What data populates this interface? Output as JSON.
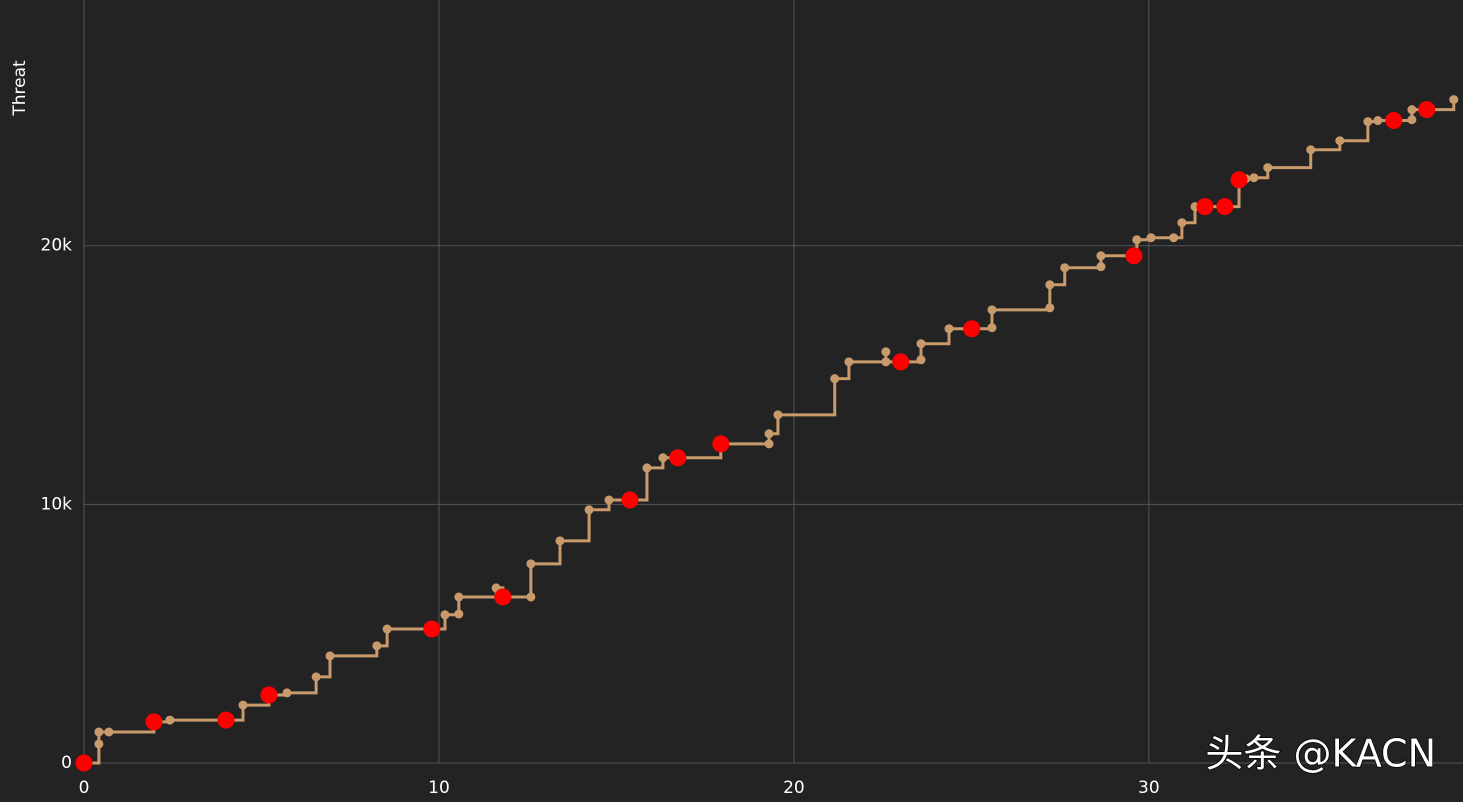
{
  "chart_data": {
    "type": "line",
    "y_label": "Threat",
    "watermark": "头条 @KACN",
    "xlim": [
      0,
      38.85
    ],
    "ylim": [
      0,
      29500
    ],
    "xticks": [
      0,
      10,
      20,
      30
    ],
    "yticks": [
      0,
      {
        "value": 10000,
        "label": "10k"
      },
      {
        "value": 20000,
        "label": "20k"
      }
    ],
    "grid": true,
    "series": [
      {
        "color": "#c89a6c",
        "line_shape": "hv",
        "mode": "lines+markers",
        "x": [
          0,
          0.42,
          0.42,
          0.7,
          1.97,
          2.42,
          4.0,
          4.48,
          5.21,
          5.72,
          6.54,
          6.93,
          8.25,
          8.54,
          9.8,
          10.17,
          10.56,
          10.56,
          11.61,
          11.8,
          12.59,
          12.59,
          13.41,
          14.23,
          14.79,
          15.38,
          15.86,
          16.31,
          16.73,
          17.94,
          19.3,
          19.3,
          19.55,
          21.15,
          21.55,
          22.59,
          22.59,
          23.01,
          23.58,
          23.58,
          24.37,
          25.01,
          25.58,
          25.58,
          27.21,
          27.21,
          27.63,
          28.65,
          28.65,
          29.58,
          29.66,
          30.06,
          30.7,
          30.93,
          31.3,
          31.58,
          32.14,
          32.54,
          32.73,
          32.96,
          33.35,
          34.56,
          35.38,
          36.17,
          36.45,
          36.9,
          37.41,
          37.41,
          37.83,
          38.59
        ],
        "values": [
          0,
          735,
          1200,
          1200,
          1590,
          1660,
          1660,
          2240,
          2630,
          2710,
          3330,
          4140,
          4530,
          5180,
          5180,
          5730,
          5760,
          6420,
          6770,
          6420,
          6420,
          7700,
          8590,
          9790,
          10170,
          10170,
          11410,
          11800,
          11800,
          12340,
          12340,
          12730,
          13460,
          14860,
          15510,
          15900,
          15510,
          15510,
          15590,
          16210,
          16790,
          16790,
          16830,
          17520,
          17600,
          18490,
          19150,
          19190,
          19610,
          19610,
          20230,
          20310,
          20310,
          20890,
          21510,
          21510,
          21510,
          22550,
          22590,
          22630,
          23020,
          23710,
          24060,
          24800,
          24840,
          24840,
          24870,
          25260,
          25260,
          25650
        ]
      },
      {
        "color": "#ff0000",
        "mode": "markers",
        "x": [
          0,
          1.97,
          4.0,
          5.21,
          9.8,
          11.8,
          15.38,
          16.73,
          17.94,
          23.01,
          25.01,
          29.58,
          31.58,
          32.14,
          32.54,
          36.9,
          37.83
        ],
        "values": [
          0,
          1590,
          1660,
          2630,
          5180,
          6420,
          10170,
          11800,
          12340,
          15510,
          16790,
          19610,
          21510,
          21510,
          22550,
          24840,
          25260
        ]
      }
    ]
  }
}
